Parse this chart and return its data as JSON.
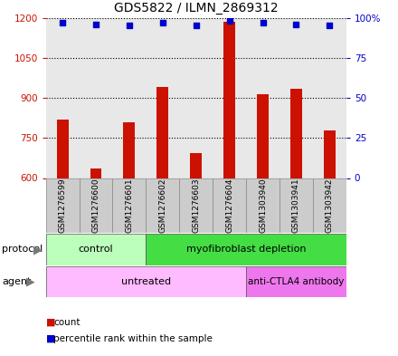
{
  "title": "GDS5822 / ILMN_2869312",
  "samples": [
    "GSM1276599",
    "GSM1276600",
    "GSM1276601",
    "GSM1276602",
    "GSM1276603",
    "GSM1276604",
    "GSM1303940",
    "GSM1303941",
    "GSM1303942"
  ],
  "counts": [
    820,
    635,
    810,
    940,
    693,
    1185,
    915,
    935,
    778
  ],
  "percentiles": [
    97,
    96,
    95,
    97,
    95,
    98,
    97,
    96,
    95
  ],
  "ylim_left": [
    600,
    1200
  ],
  "ylim_right": [
    0,
    100
  ],
  "yticks_left": [
    600,
    750,
    900,
    1050,
    1200
  ],
  "yticks_right": [
    0,
    25,
    50,
    75,
    100
  ],
  "bar_color": "#cc1100",
  "scatter_color": "#0000cc",
  "plot_bg_color": "#e8e8e8",
  "sample_box_color": "#cccccc",
  "protocol_labels": [
    "control",
    "myofibroblast depletion"
  ],
  "protocol_n": [
    3,
    6
  ],
  "protocol_colors": [
    "#bbffbb",
    "#44dd44"
  ],
  "agent_labels": [
    "untreated",
    "anti-CTLA4 antibody"
  ],
  "agent_n": [
    6,
    3
  ],
  "agent_colors": [
    "#ffbbff",
    "#ee77ee"
  ],
  "legend_items": [
    "count",
    "percentile rank within the sample"
  ],
  "title_fontsize": 10,
  "tick_fontsize": 7.5,
  "sample_fontsize": 6.5,
  "row_fontsize": 8,
  "legend_fontsize": 7.5
}
